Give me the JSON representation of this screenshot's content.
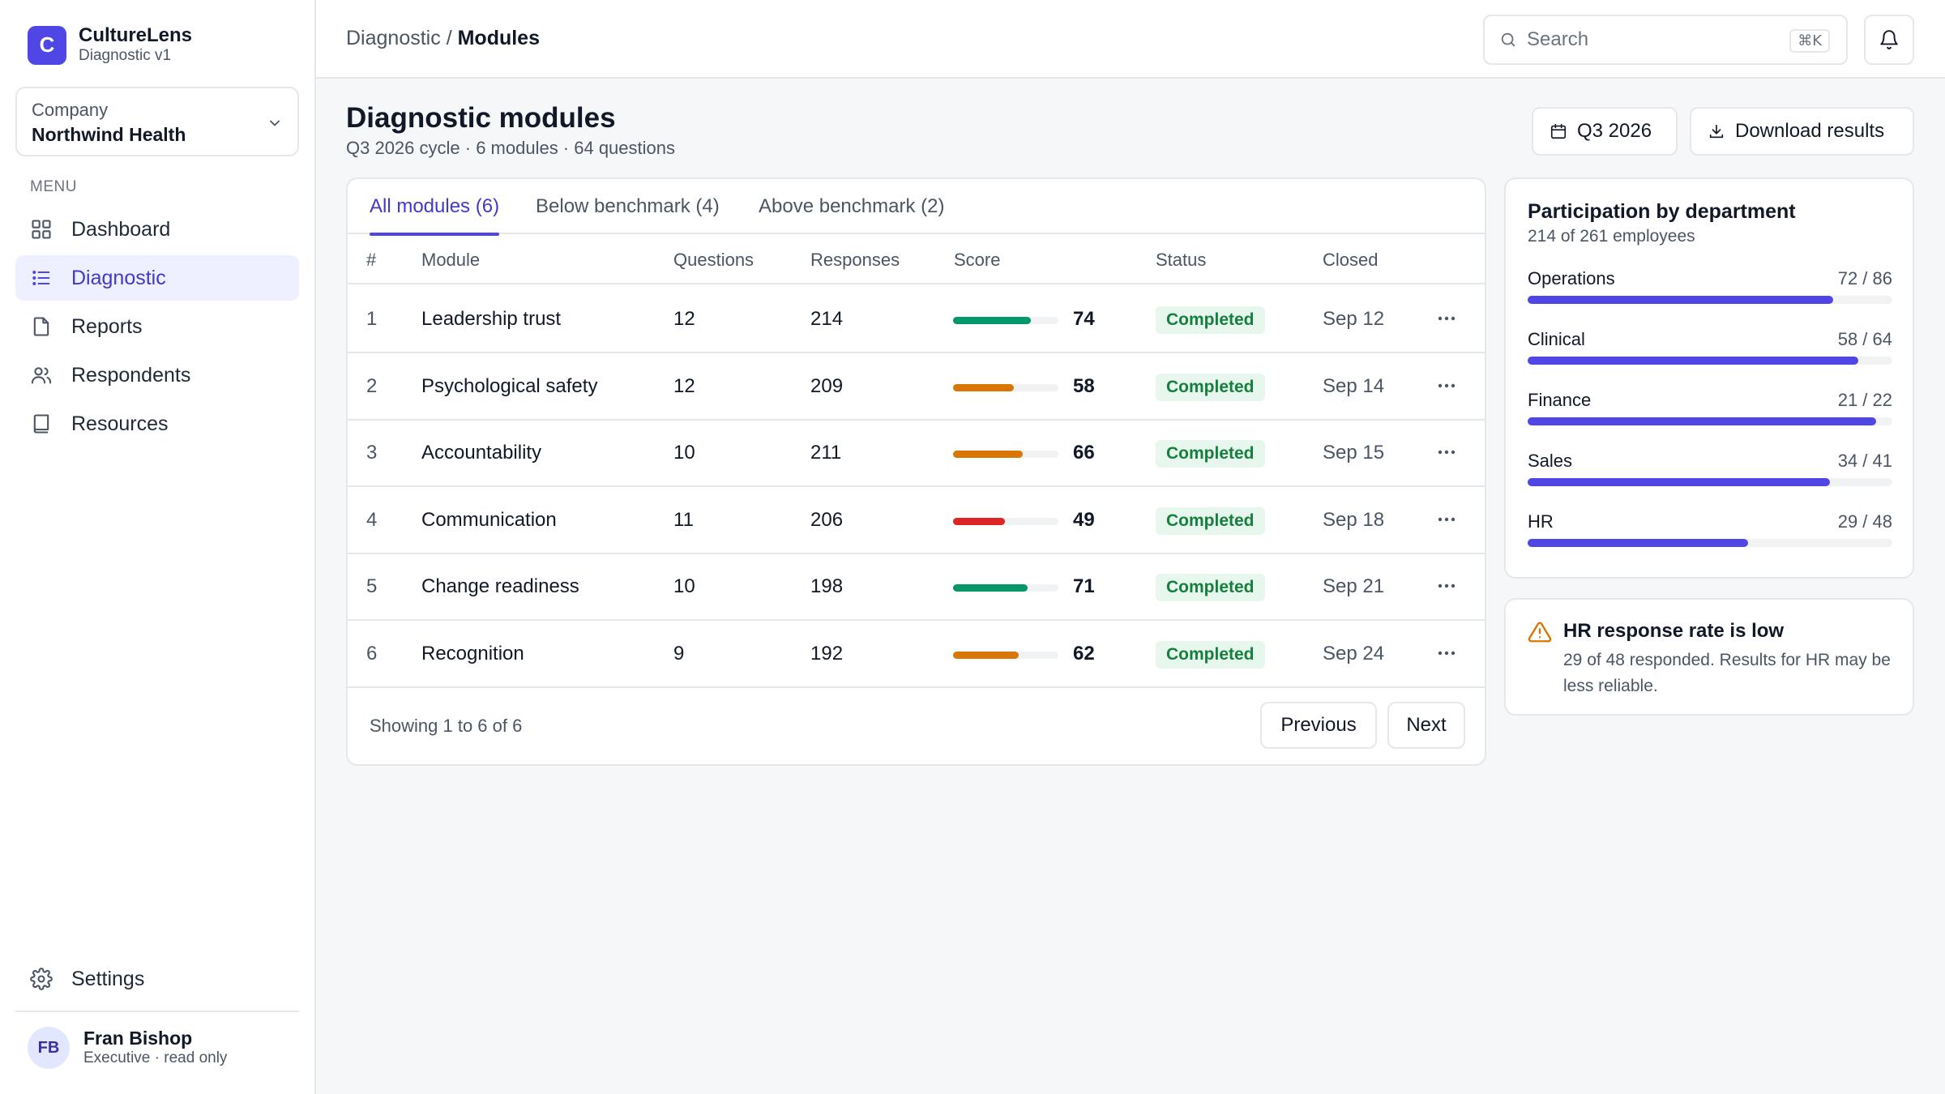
{
  "app": {
    "logo_letter": "C",
    "name": "CultureLens",
    "subtitle": "Diagnostic v1"
  },
  "company": {
    "label": "Company",
    "value": "Northwind Health"
  },
  "menu": {
    "label": "MENU",
    "items": [
      {
        "label": "Dashboard",
        "icon": "grid-icon",
        "active": false
      },
      {
        "label": "Diagnostic",
        "icon": "list-icon",
        "active": true
      },
      {
        "label": "Reports",
        "icon": "file-icon",
        "active": false
      },
      {
        "label": "Respondents",
        "icon": "users-icon",
        "active": false
      },
      {
        "label": "Resources",
        "icon": "book-icon",
        "active": false
      }
    ]
  },
  "settings": {
    "label": "Settings",
    "icon": "gear-icon"
  },
  "user": {
    "initials": "FB",
    "name": "Fran Bishop",
    "role": "Executive · read only"
  },
  "breadcrumb": {
    "parent": "Diagnostic",
    "separator": "/",
    "current": "Modules"
  },
  "search": {
    "placeholder": "Search",
    "shortcut": "⌘K"
  },
  "page": {
    "title": "Diagnostic modules",
    "subtitle": "Q3 2026 cycle · 6 modules · 64 questions",
    "quarter_button": "Q3 2026",
    "download_button": "Download results"
  },
  "tabs": [
    {
      "label": "All modules (6)",
      "active": true
    },
    {
      "label": "Below benchmark (4)",
      "active": false
    },
    {
      "label": "Above benchmark (2)",
      "active": false
    }
  ],
  "table": {
    "columns": [
      "#",
      "Module",
      "Questions",
      "Responses",
      "Score",
      "Status",
      "Closed"
    ],
    "rows": [
      {
        "idx": "1",
        "module": "Leadership trust",
        "questions": "12",
        "responses": "214",
        "score": 74,
        "status": "Completed",
        "closed": "Sep 12"
      },
      {
        "idx": "2",
        "module": "Psychological safety",
        "questions": "12",
        "responses": "209",
        "score": 58,
        "status": "Completed",
        "closed": "Sep 14"
      },
      {
        "idx": "3",
        "module": "Accountability",
        "questions": "10",
        "responses": "211",
        "score": 66,
        "status": "Completed",
        "closed": "Sep 15"
      },
      {
        "idx": "4",
        "module": "Communication",
        "questions": "11",
        "responses": "206",
        "score": 49,
        "status": "Completed",
        "closed": "Sep 18"
      },
      {
        "idx": "5",
        "module": "Change readiness",
        "questions": "10",
        "responses": "198",
        "score": 71,
        "status": "Completed",
        "closed": "Sep 21"
      },
      {
        "idx": "6",
        "module": "Recognition",
        "questions": "9",
        "responses": "192",
        "score": 62,
        "status": "Completed",
        "closed": "Sep 24"
      }
    ],
    "score_colors": {
      "high": "#059669",
      "medium": "#d97706",
      "low": "#dc2626"
    },
    "showing": "Showing 1 to 6 of 6",
    "previous": "Previous",
    "next": "Next"
  },
  "participation": {
    "title": "Participation by department",
    "subtitle": "214 of 261 employees",
    "accent": "#4f46e5",
    "departments": [
      {
        "name": "Operations",
        "count": "72 / 86",
        "responded": 72,
        "total": 86
      },
      {
        "name": "Clinical",
        "count": "58 / 64",
        "responded": 58,
        "total": 64
      },
      {
        "name": "Finance",
        "count": "21 / 22",
        "responded": 21,
        "total": 22
      },
      {
        "name": "Sales",
        "count": "34 / 41",
        "responded": 34,
        "total": 41
      },
      {
        "name": "HR",
        "count": "29 / 48",
        "responded": 29,
        "total": 48
      }
    ]
  },
  "alert": {
    "title": "HR response rate is low",
    "text": "29 of 48 responded. Results for HR may be less reliable.",
    "icon": "warning-icon",
    "color": "#d97706"
  }
}
